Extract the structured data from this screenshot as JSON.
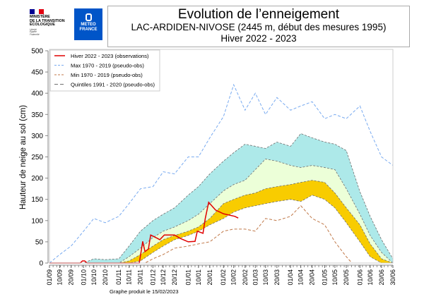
{
  "header": {
    "ministry_lines": [
      "MINISTÈRE",
      "DE LA TRANSITION",
      "ÉCOLOGIQUE"
    ],
    "ministry_motto": [
      "Liberté",
      "Égalité",
      "Fraternité"
    ],
    "meteo_logo": [
      "METEO",
      "FRANCE"
    ],
    "title": "Evolution de l’enneigement",
    "subtitle": "LAC-ARDIDEN-NIVOSE (2445 m, début des mesures 1995)",
    "season": "Hiver 2022 - 2023"
  },
  "footer": "Graphe produit le 15/02/2023",
  "colors": {
    "obs": "#e00000",
    "max": "#78aaf0",
    "min": "#c07848",
    "quintile": "#707070",
    "band_q20_q40": "#f8cc00",
    "band_q40_q60": "#ecffd8",
    "band_q60_q80": "#ade9e9"
  },
  "chart_data": {
    "type": "line",
    "ylabel": "Hauteur de neige au sol (cm)",
    "ylim": [
      0,
      500
    ],
    "yticks": [
      0,
      50,
      100,
      150,
      200,
      250,
      300,
      350,
      400,
      450,
      500
    ],
    "xticks": [
      "01/09",
      "10/09",
      "20/09",
      "01/10",
      "10/10",
      "20/10",
      "01/11",
      "10/11",
      "20/11",
      "01/12",
      "10/12",
      "20/12",
      "01/01",
      "10/01",
      "20/01",
      "01/02",
      "10/02",
      "20/02",
      "01/03",
      "10/03",
      "20/03",
      "01/04",
      "10/04",
      "20/04",
      "01/05",
      "10/05",
      "20/05",
      "01/06",
      "10/06",
      "20/06",
      "30/06"
    ],
    "legend_position": "top-left",
    "legend": [
      "Hiver 2022 - 2023 (observations)",
      "Max 1970 - 2019 (pseudo-obs)",
      "Min 1970 - 2019 (pseudo-obs)",
      "Quintiles 1991 - 2020 (pseudo-obs)"
    ],
    "series": {
      "observations": {
        "x": [
          "01/09",
          "28/09",
          "30/09",
          "02/10",
          "04/10",
          "19/11",
          "22/11",
          "24/11",
          "27/11",
          "29/11",
          "05/12",
          "07/12",
          "11/12",
          "20/12",
          "25/12",
          "01/01",
          "07/01",
          "09/01",
          "14/01",
          "16/01",
          "19/01",
          "25/01",
          "01/02",
          "11/02",
          "14/02"
        ],
        "y": [
          0,
          0,
          5,
          5,
          0,
          0,
          51,
          27,
          33,
          66,
          58,
          55,
          66,
          66,
          58,
          50,
          51,
          75,
          70,
          105,
          143,
          125,
          116,
          110,
          106
        ]
      },
      "max": {
        "x": [
          "01/09",
          "10/09",
          "20/09",
          "01/10",
          "10/10",
          "20/10",
          "01/11",
          "10/11",
          "20/11",
          "01/12",
          "10/12",
          "20/12",
          "01/01",
          "10/01",
          "20/01",
          "01/02",
          "10/02",
          "20/02",
          "01/03",
          "10/03",
          "20/03",
          "01/04",
          "10/04",
          "20/04",
          "01/05",
          "10/05",
          "20/05",
          "01/06",
          "10/06",
          "20/06",
          "30/06"
        ],
        "y": [
          0,
          20,
          40,
          75,
          105,
          95,
          110,
          140,
          175,
          180,
          215,
          210,
          250,
          250,
          295,
          345,
          420,
          360,
          400,
          350,
          390,
          360,
          370,
          380,
          340,
          350,
          340,
          370,
          310,
          250,
          230
        ]
      },
      "min": {
        "x": [
          "01/09",
          "24/11",
          "01/12",
          "10/12",
          "20/12",
          "01/01",
          "10/01",
          "20/01",
          "01/02",
          "10/02",
          "20/02",
          "01/03",
          "10/03",
          "20/03",
          "01/04",
          "10/04",
          "20/04",
          "01/05",
          "10/05",
          "20/05",
          "25/05",
          "30/06"
        ],
        "y": [
          0,
          0,
          10,
          20,
          35,
          40,
          45,
          50,
          75,
          80,
          80,
          75,
          105,
          100,
          110,
          135,
          105,
          90,
          50,
          15,
          0,
          0
        ]
      },
      "quintiles": {
        "x": [
          "01/09",
          "01/10",
          "10/10",
          "20/10",
          "01/11",
          "10/11",
          "20/11",
          "01/12",
          "10/12",
          "20/12",
          "01/01",
          "10/01",
          "20/01",
          "01/02",
          "10/02",
          "20/02",
          "01/03",
          "10/03",
          "20/03",
          "01/04",
          "10/04",
          "20/04",
          "01/05",
          "10/05",
          "20/05",
          "01/06",
          "10/06",
          "20/06",
          "30/06"
        ],
        "q20": [
          0,
          0,
          0,
          0,
          0,
          0,
          5,
          25,
          40,
          55,
          65,
          75,
          90,
          105,
          120,
          130,
          135,
          140,
          145,
          150,
          145,
          160,
          150,
          130,
          95,
          50,
          15,
          0,
          0
        ],
        "q40": [
          0,
          0,
          0,
          0,
          0,
          5,
          20,
          40,
          55,
          65,
          75,
          85,
          105,
          140,
          150,
          160,
          165,
          175,
          180,
          185,
          190,
          195,
          190,
          165,
          130,
          90,
          45,
          10,
          0
        ],
        "q60": [
          0,
          0,
          0,
          0,
          0,
          15,
          35,
          60,
          75,
          85,
          100,
          115,
          140,
          170,
          185,
          195,
          220,
          245,
          240,
          230,
          225,
          230,
          225,
          220,
          175,
          115,
          65,
          25,
          0
        ],
        "q80": [
          0,
          0,
          10,
          8,
          10,
          40,
          75,
          100,
          115,
          130,
          160,
          180,
          210,
          240,
          260,
          280,
          275,
          270,
          285,
          275,
          305,
          295,
          285,
          280,
          265,
          168,
          110,
          55,
          10
        ]
      }
    }
  }
}
